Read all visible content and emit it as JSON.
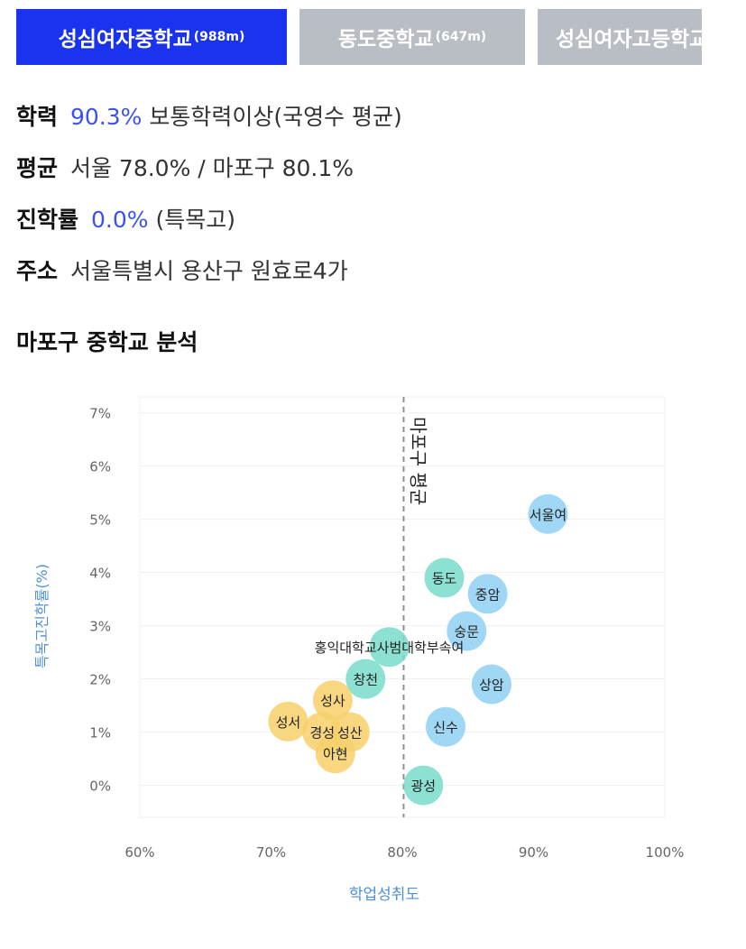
{
  "tabs": [
    {
      "name": "성심여자중학교",
      "dist": "(988m)",
      "active": true
    },
    {
      "name": "동도중학교",
      "dist": "(647m)",
      "active": false
    },
    {
      "name": "성심여자고등학교",
      "dist": "",
      "active": false
    }
  ],
  "info": {
    "academic_label": "학력",
    "academic_value": "90.3%",
    "academic_suffix": "보통학력이상(국영수 평균)",
    "avg_label": "평균",
    "avg_text": "서울 78.0% / 마포구 80.1%",
    "admission_label": "진학률",
    "admission_value": "0.0%",
    "admission_suffix": "(특목고)",
    "address_label": "주소",
    "address_text": "서울특별시 용산구 원효로4가"
  },
  "section_title": "마포구 중학교 분석",
  "chart_data": {
    "type": "scatter",
    "xlabel": "학업성취도",
    "ylabel": "특목고진학률(%)",
    "xlim": [
      60,
      100
    ],
    "ylim": [
      -0.6,
      7.3
    ],
    "x_ticks": [
      "60%",
      "70%",
      "80%",
      "90%",
      "100%"
    ],
    "x_tick_values": [
      60,
      70,
      80,
      90,
      100
    ],
    "y_ticks": [
      "0%",
      "1%",
      "2%",
      "3%",
      "4%",
      "5%",
      "6%",
      "7%"
    ],
    "y_tick_values": [
      0,
      1,
      2,
      3,
      4,
      5,
      6,
      7
    ],
    "reference_line": {
      "x": 80.1,
      "label": "마포구 평균"
    },
    "grid": true,
    "points": [
      {
        "label": "서울여",
        "x": 91.1,
        "y": 5.1,
        "color": "#8fd0f2"
      },
      {
        "label": "동도",
        "x": 83.2,
        "y": 3.9,
        "color": "#79dccb"
      },
      {
        "label": "중암",
        "x": 86.5,
        "y": 3.6,
        "color": "#8fd0f2"
      },
      {
        "label": "숭문",
        "x": 84.9,
        "y": 2.9,
        "color": "#8fd0f2"
      },
      {
        "label": "홍익대학교사범대학부속여",
        "x": 79.0,
        "y": 2.6,
        "color": "#79dccb"
      },
      {
        "label": "창천",
        "x": 77.2,
        "y": 2.0,
        "color": "#79dccb"
      },
      {
        "label": "상암",
        "x": 86.8,
        "y": 1.9,
        "color": "#8fd0f2"
      },
      {
        "label": "성사",
        "x": 74.7,
        "y": 1.6,
        "color": "#f7d06a"
      },
      {
        "label": "성서",
        "x": 71.3,
        "y": 1.2,
        "color": "#f7d06a"
      },
      {
        "label": "신수",
        "x": 83.3,
        "y": 1.1,
        "color": "#8fd0f2"
      },
      {
        "label": "경성",
        "x": 73.9,
        "y": 1.0,
        "color": "#f7d06a"
      },
      {
        "label": "성산",
        "x": 76.0,
        "y": 1.0,
        "color": "#f7d06a"
      },
      {
        "label": "아현",
        "x": 74.9,
        "y": 0.6,
        "color": "#f7d06a"
      },
      {
        "label": "광성",
        "x": 81.6,
        "y": 0.0,
        "color": "#79dccb"
      }
    ]
  }
}
